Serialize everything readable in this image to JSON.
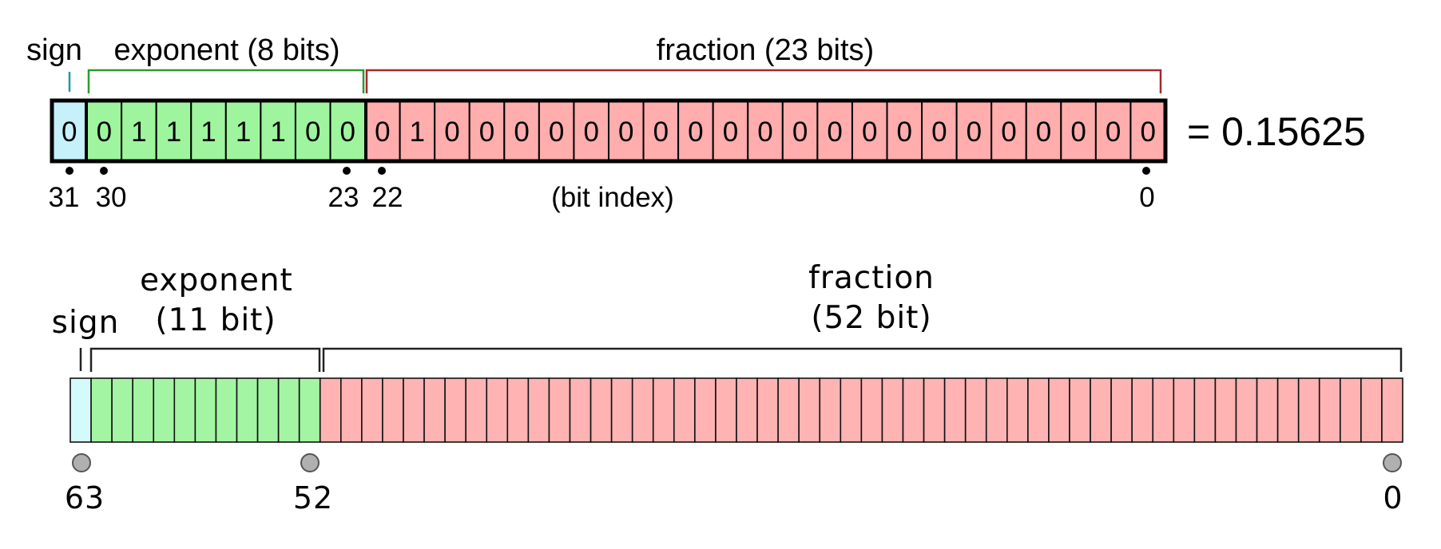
{
  "single": {
    "labels": {
      "sign": "sign",
      "exponent": "exponent (8 bits)",
      "fraction": "fraction (23 bits)",
      "bit_index": "(bit index)"
    },
    "bits": "00111110001000000000000000000000",
    "value": "= 0.15625",
    "indices": [
      "31",
      "30",
      "23",
      "22",
      "0"
    ],
    "colors": {
      "sign": "#c6f1fb",
      "exponent": "#9ef59e",
      "fraction": "#ffadad",
      "sign_bracket": "#1e9aa0",
      "exponent_bracket": "#2e9a2e",
      "fraction_bracket": "#a52a2a"
    }
  },
  "double": {
    "labels": {
      "sign": "sign",
      "exponent_line1": "exponent",
      "exponent_line2": "(11 bit)",
      "fraction_line1": "fraction",
      "fraction_line2": "(52 bit)"
    },
    "sign_bits": 1,
    "exponent_bits": 11,
    "fraction_bits": 52,
    "indices": [
      "63",
      "52",
      "0"
    ],
    "colors": {
      "sign": "#d4fbfb",
      "exponent": "#a3f5a3",
      "fraction": "#ffb3b3",
      "bracket": "#222222",
      "marker": "#b0b0b0"
    }
  }
}
